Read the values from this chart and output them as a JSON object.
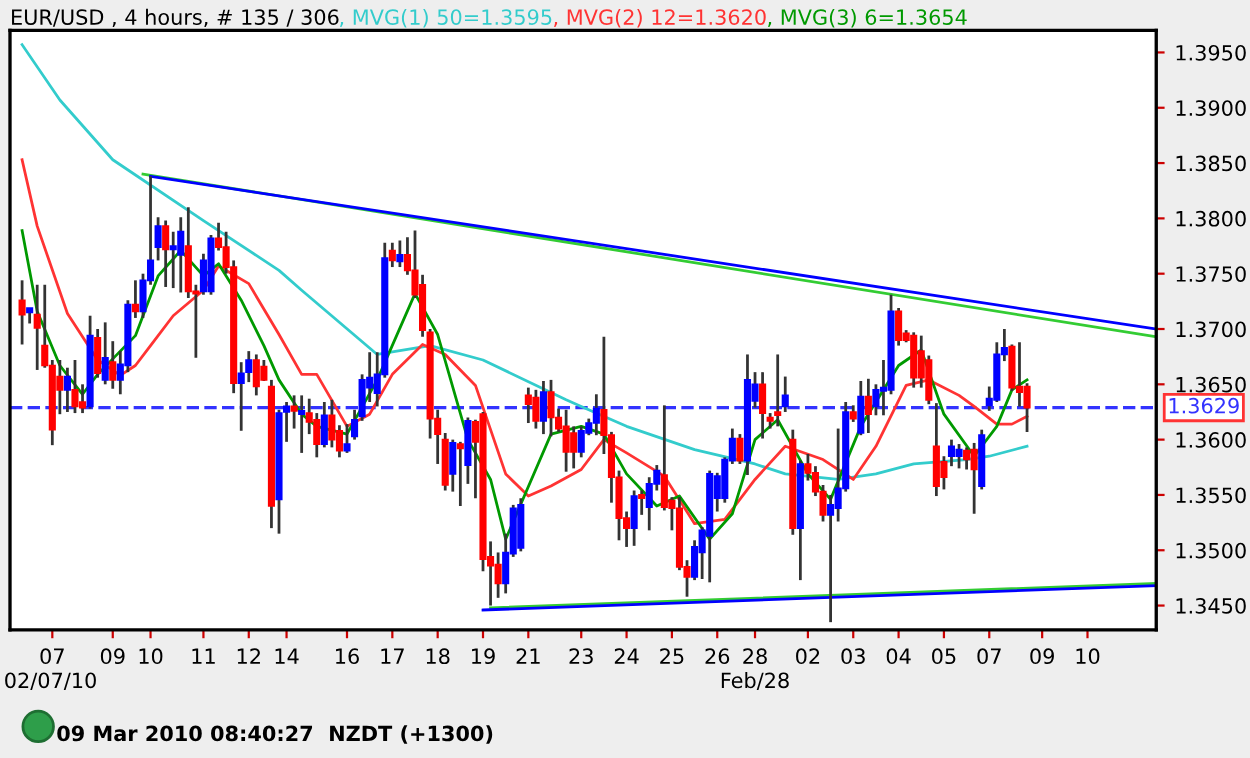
{
  "chart_data": {
    "type": "candlestick",
    "title": "EUR/USD , 4 hours, # 135 / 306",
    "legend": "top",
    "categories": [
      null,
      null,
      null,
      null,
      "07",
      null,
      null,
      null,
      null,
      null,
      null,
      null,
      "09",
      null,
      null,
      null,
      null,
      "10",
      null,
      null,
      null,
      null,
      null,
      null,
      "11",
      null,
      null,
      null,
      null,
      null,
      "12",
      null,
      null,
      null,
      null,
      "14",
      null,
      null,
      null,
      null,
      null,
      null,
      null,
      "16",
      null,
      null,
      null,
      null,
      null,
      "17",
      null,
      null,
      null,
      null,
      null,
      "18",
      null,
      null,
      null,
      null,
      null,
      "19",
      null,
      null,
      null,
      null,
      null,
      "21",
      null,
      null,
      null,
      null,
      null,
      null,
      "23",
      null,
      null,
      null,
      null,
      null,
      "24",
      null,
      null,
      null,
      null,
      null,
      "25",
      null,
      null,
      null,
      null,
      null,
      "26",
      null,
      null,
      null,
      null,
      "28",
      null,
      null,
      null,
      null,
      null,
      null,
      "02",
      null,
      null,
      null,
      null,
      null,
      "03",
      null,
      null,
      null,
      null,
      null,
      "04",
      null,
      null,
      null,
      null,
      null,
      "05",
      null,
      null,
      null,
      null,
      null,
      "07",
      null,
      null,
      null,
      null,
      null,
      null,
      "09",
      null,
      null,
      null,
      null,
      null,
      "10",
      null,
      null,
      null,
      null,
      null,
      null,
      null,
      null,
      null
    ],
    "ylim": [
      1.3428,
      1.397
    ],
    "yticks": [
      {
        "value": 1.345,
        "label": "1.3450"
      },
      {
        "value": 1.35,
        "label": "1.3500"
      },
      {
        "value": 1.355,
        "label": "1.3550"
      },
      {
        "value": 1.36,
        "label": "1.3600"
      },
      {
        "value": 1.365,
        "label": "1.3650"
      },
      {
        "value": 1.37,
        "label": "1.3700"
      },
      {
        "value": 1.375,
        "label": "1.3750"
      },
      {
        "value": 1.38,
        "label": "1.3800"
      },
      {
        "value": 1.385,
        "label": "1.3850"
      },
      {
        "value": 1.39,
        "label": "1.3900"
      },
      {
        "value": 1.395,
        "label": "1.3950"
      }
    ],
    "ref_lines": [
      {
        "axis": "y",
        "value": 1.3629,
        "label": "1.3629",
        "color": "#3333ff",
        "line_style": "dashed"
      }
    ],
    "annotations": [
      "02/07/10",
      "Feb/28",
      "09 Mar 2010 08:40:27  NZDT (+1300)"
    ],
    "series": [
      {
        "colors": [
          "#ff0000",
          "#0000ff",
          "#ff0000",
          "#ff0000",
          "#ff0000",
          "#ff0000",
          "#0000ff",
          "#ff0000",
          "#ff0000",
          "#0000ff",
          "#ff0000",
          "#0000ff",
          "#ff0000",
          "#0000ff",
          "#0000ff",
          "#ff0000",
          "#0000ff",
          "#0000ff",
          "#0000ff",
          "#ff0000",
          "#0000ff",
          "#0000ff",
          "#ff0000",
          "#ff0000",
          "#0000ff",
          "#0000ff",
          "#ff0000",
          "#ff0000",
          "#ff0000",
          "#0000ff",
          "#0000ff",
          "#ff0000",
          "#ff0000",
          "#ff0000",
          "#0000ff",
          "#0000ff",
          "#ff0000",
          "#0000ff",
          "#ff0000",
          "#ff0000",
          "#0000ff",
          "#ff0000",
          "#ff0000",
          "#0000ff",
          "#0000ff",
          "#0000ff",
          "#0000ff",
          "#0000ff",
          "#0000ff",
          "#ff0000",
          "#0000ff",
          "#ff0000",
          "#ff0000",
          "#ff0000",
          "#ff0000",
          "#ff0000",
          "#ff0000",
          "#0000ff",
          "#ff0000",
          "#0000ff",
          "#ff0000",
          "#ff0000",
          "#ff0000",
          "#ff0000",
          "#0000ff",
          "#0000ff",
          "#0000ff",
          "#ff0000",
          "#ff0000",
          "#0000ff",
          "#ff0000",
          "#ff0000",
          "#ff0000",
          "#ff0000",
          "#0000ff",
          "#0000ff",
          "#0000ff",
          "#ff0000",
          "#ff0000",
          "#ff0000",
          "#ff0000",
          "#0000ff",
          "#ff0000",
          "#0000ff",
          "#0000ff",
          "#ff0000",
          "#ff0000",
          "#ff0000",
          "#ff0000",
          "#0000ff",
          "#0000ff",
          "#0000ff",
          "#0000ff",
          "#0000ff",
          "#0000ff",
          "#ff0000",
          "#0000ff",
          "#0000ff",
          "#ff0000",
          "#ff0000",
          "#ff0000",
          "#0000ff",
          "#ff0000",
          "#0000ff",
          "#ff0000",
          "#ff0000",
          "#ff0000",
          "#0000ff",
          "#0000ff",
          "#0000ff",
          "#ff0000",
          "#0000ff",
          "#ff0000",
          "#0000ff",
          "#0000ff",
          "#0000ff",
          "#ff0000",
          "#ff0000",
          "#ff0000",
          "#ff0000",
          "#ff0000",
          "#ff0000",
          "#ff0000",
          "#0000ff",
          "#0000ff",
          "#ff0000",
          "#ff0000",
          "#0000ff",
          "#0000ff",
          "#0000ff",
          "#0000ff",
          "#ff0000",
          "#ff0000",
          "#ff0000",
          null,
          null,
          null,
          null,
          null,
          null,
          null,
          null,
          null,
          null,
          null,
          null,
          null,
          null,
          null,
          null,
          null
        ],
        "ohlc": [
          [
            1.3726,
            1.3744,
            1.3686,
            1.3713
          ],
          [
            1.3715,
            1.3719,
            1.3705,
            1.3719
          ],
          [
            1.3713,
            1.374,
            1.3663,
            1.3701
          ],
          [
            1.3685,
            1.374,
            1.3665,
            1.3667
          ],
          [
            1.3667,
            1.3672,
            1.3595,
            1.3609
          ],
          [
            1.3657,
            1.3672,
            1.3623,
            1.3645
          ],
          [
            1.3645,
            1.3665,
            1.3625,
            1.3657
          ],
          [
            1.3645,
            1.3672,
            1.3624,
            1.363
          ],
          [
            1.3634,
            1.365,
            1.3624,
            1.3629
          ],
          [
            1.363,
            1.3712,
            1.3628,
            1.3694
          ],
          [
            1.3692,
            1.37,
            1.3656,
            1.366
          ],
          [
            1.3654,
            1.3706,
            1.365,
            1.3674
          ],
          [
            1.367,
            1.3689,
            1.3646,
            1.3654
          ],
          [
            1.3654,
            1.368,
            1.3641,
            1.3668
          ],
          [
            1.3667,
            1.3726,
            1.3661,
            1.3722
          ],
          [
            1.3722,
            1.3744,
            1.371,
            1.3716
          ],
          [
            1.3716,
            1.375,
            1.371,
            1.3744
          ],
          [
            1.3744,
            1.3838,
            1.374,
            1.3762
          ],
          [
            1.3774,
            1.3801,
            1.3762,
            1.3793
          ],
          [
            1.3793,
            1.3798,
            1.3738,
            1.3772
          ],
          [
            1.3772,
            1.3788,
            1.3737,
            1.3775
          ],
          [
            1.3767,
            1.3801,
            1.3733,
            1.3788
          ],
          [
            1.3775,
            1.381,
            1.3728,
            1.3734
          ],
          [
            1.3734,
            1.374,
            1.3674,
            1.3732
          ],
          [
            1.3734,
            1.3768,
            1.3731,
            1.3762
          ],
          [
            1.3734,
            1.3785,
            1.3731,
            1.3782
          ],
          [
            1.3782,
            1.3796,
            1.3771,
            1.3774
          ],
          [
            1.3774,
            1.3788,
            1.375,
            1.3756
          ],
          [
            1.3756,
            1.3762,
            1.3642,
            1.3651
          ],
          [
            1.3651,
            1.367,
            1.3608,
            1.366
          ],
          [
            1.3661,
            1.368,
            1.3652,
            1.3672
          ],
          [
            1.3672,
            1.3677,
            1.364,
            1.3648
          ],
          [
            1.3666,
            1.3672,
            1.3653,
            1.3654
          ],
          [
            1.3648,
            1.3654,
            1.352,
            1.354
          ],
          [
            1.3546,
            1.3627,
            1.3515,
            1.3624
          ],
          [
            1.3625,
            1.3634,
            1.3598,
            1.363
          ],
          [
            1.363,
            1.364,
            1.361,
            1.3626
          ],
          [
            1.3623,
            1.364,
            1.3588,
            1.3626
          ],
          [
            1.3624,
            1.3637,
            1.3605,
            1.3616
          ],
          [
            1.3618,
            1.3624,
            1.3584,
            1.3596
          ],
          [
            1.3596,
            1.3634,
            1.3593,
            1.3622
          ],
          [
            1.3622,
            1.3636,
            1.3593,
            1.36
          ],
          [
            1.3608,
            1.3613,
            1.3584,
            1.359
          ],
          [
            1.359,
            1.3614,
            1.3588,
            1.3596
          ],
          [
            1.3603,
            1.3627,
            1.36,
            1.3618
          ],
          [
            1.3621,
            1.3659,
            1.3617,
            1.3654
          ],
          [
            1.3647,
            1.3679,
            1.3634,
            1.3656
          ],
          [
            1.3642,
            1.3679,
            1.363,
            1.3659
          ],
          [
            1.3659,
            1.3778,
            1.3656,
            1.3764
          ],
          [
            1.3771,
            1.3778,
            1.3756,
            1.3762
          ],
          [
            1.3761,
            1.378,
            1.3756,
            1.3767
          ],
          [
            1.3767,
            1.3783,
            1.3749,
            1.3753
          ],
          [
            1.3753,
            1.3789,
            1.3728,
            1.3731
          ],
          [
            1.374,
            1.3749,
            1.3693,
            1.3699
          ],
          [
            1.3697,
            1.37,
            1.3601,
            1.3619
          ],
          [
            1.3619,
            1.3627,
            1.3578,
            1.3605
          ],
          [
            1.36,
            1.3606,
            1.3554,
            1.3559
          ],
          [
            1.3569,
            1.36,
            1.3553,
            1.3597
          ],
          [
            1.3596,
            1.3598,
            1.354,
            1.3592
          ],
          [
            1.3577,
            1.362,
            1.356,
            1.3617
          ],
          [
            1.3616,
            1.3618,
            1.3547,
            1.3598
          ],
          [
            1.3623,
            1.3625,
            1.3481,
            1.3492
          ],
          [
            1.3494,
            1.3508,
            1.345,
            1.3486
          ],
          [
            1.3487,
            1.3498,
            1.3457,
            1.347
          ],
          [
            1.347,
            1.3515,
            1.3461,
            1.3498
          ],
          [
            1.3497,
            1.3541,
            1.3494,
            1.3538
          ],
          [
            1.3502,
            1.3547,
            1.3499,
            1.3541
          ],
          [
            1.364,
            1.3647,
            1.3615,
            1.3632
          ],
          [
            1.3638,
            1.3645,
            1.361,
            1.3617
          ],
          [
            1.3617,
            1.3653,
            1.3605,
            1.3643
          ],
          [
            1.3643,
            1.3654,
            1.3603,
            1.362
          ],
          [
            1.362,
            1.3628,
            1.3607,
            1.361
          ],
          [
            1.3612,
            1.3627,
            1.3571,
            1.3589
          ],
          [
            1.3606,
            1.3612,
            1.3574,
            1.3589
          ],
          [
            1.3589,
            1.3612,
            1.3584,
            1.3608
          ],
          [
            1.3606,
            1.3619,
            1.3604,
            1.3615
          ],
          [
            1.3615,
            1.3641,
            1.3604,
            1.3628
          ],
          [
            1.3627,
            1.3693,
            1.3587,
            1.3604
          ],
          [
            1.3604,
            1.3607,
            1.3543,
            1.3566
          ],
          [
            1.3566,
            1.3572,
            1.3509,
            1.3529
          ],
          [
            1.3529,
            1.3535,
            1.3503,
            1.352
          ],
          [
            1.352,
            1.3554,
            1.3504,
            1.3549
          ],
          [
            1.355,
            1.3554,
            1.3532,
            1.3547
          ],
          [
            1.3539,
            1.3566,
            1.3518,
            1.356
          ],
          [
            1.356,
            1.3577,
            1.3554,
            1.3572
          ],
          [
            1.3568,
            1.3631,
            1.3536,
            1.3539
          ],
          [
            1.3545,
            1.3548,
            1.3518,
            1.3538
          ],
          [
            1.3538,
            1.3548,
            1.3482,
            1.3485
          ],
          [
            1.3485,
            1.3491,
            1.3458,
            1.3476
          ],
          [
            1.3476,
            1.3509,
            1.3473,
            1.3503
          ],
          [
            1.3498,
            1.3521,
            1.3474,
            1.3518
          ],
          [
            1.3513,
            1.3572,
            1.3471,
            1.3569
          ],
          [
            1.3547,
            1.357,
            1.3535,
            1.3567
          ],
          [
            1.3547,
            1.3584,
            1.3543,
            1.3582
          ],
          [
            1.3581,
            1.361,
            1.3578,
            1.3601
          ],
          [
            1.3601,
            1.3605,
            1.3578,
            1.3581
          ],
          [
            1.3581,
            1.3677,
            1.3568,
            1.3654
          ],
          [
            1.3635,
            1.3661,
            1.3629,
            1.365
          ],
          [
            1.365,
            1.3661,
            1.3601,
            1.3624
          ],
          [
            1.362,
            1.3624,
            1.361,
            1.3617
          ],
          [
            1.3625,
            1.3677,
            1.3612,
            1.3622
          ],
          [
            1.363,
            1.3657,
            1.3625,
            1.364
          ],
          [
            1.36,
            1.3609,
            1.3514,
            1.352
          ],
          [
            1.352,
            1.3581,
            1.3473,
            1.3578
          ],
          [
            1.3578,
            1.3587,
            1.3563,
            1.357
          ],
          [
            1.357,
            1.3576,
            1.3549,
            1.3553
          ],
          [
            1.3553,
            1.3559,
            1.3526,
            1.3532
          ],
          [
            1.3532,
            1.355,
            1.3435,
            1.3541
          ],
          [
            1.3538,
            1.361,
            1.3526,
            1.3556
          ],
          [
            1.3556,
            1.3634,
            1.3553,
            1.3625
          ],
          [
            1.3625,
            1.3631,
            1.3616,
            1.3619
          ],
          [
            1.3606,
            1.3653,
            1.3604,
            1.3639
          ],
          [
            1.3639,
            1.3655,
            1.3606,
            1.3623
          ],
          [
            1.363,
            1.365,
            1.3622,
            1.3645
          ],
          [
            1.3644,
            1.3672,
            1.3622,
            1.3647
          ],
          [
            1.3645,
            1.3731,
            1.3641,
            1.3716
          ],
          [
            1.3716,
            1.3719,
            1.3685,
            1.369
          ],
          [
            1.3696,
            1.3699,
            1.3688,
            1.369
          ],
          [
            1.3694,
            1.3697,
            1.3647,
            1.3656
          ],
          [
            1.368,
            1.3694,
            1.3647,
            1.3656
          ],
          [
            1.3672,
            1.3676,
            1.3632,
            1.3636
          ],
          [
            1.3594,
            1.3633,
            1.3549,
            1.3558
          ],
          [
            1.358,
            1.3585,
            1.3555,
            1.3566
          ],
          [
            1.3585,
            1.36,
            1.3576,
            1.3594
          ],
          [
            1.3585,
            1.3596,
            1.3574,
            1.3591
          ],
          [
            1.359,
            1.3593,
            1.3573,
            1.3582
          ],
          [
            1.3591,
            1.3597,
            1.3533,
            1.3573
          ],
          [
            1.3558,
            1.3609,
            1.3555,
            1.3604
          ],
          [
            1.3631,
            1.3648,
            1.3626,
            1.3637
          ],
          [
            1.3636,
            1.3688,
            1.3634,
            1.3677
          ],
          [
            1.3677,
            1.37,
            1.3671,
            1.3683
          ],
          [
            1.3684,
            1.3686,
            1.3644,
            1.3647
          ],
          [
            1.3648,
            1.3688,
            1.363,
            1.3643
          ],
          [
            1.3648,
            1.3651,
            1.3607,
            1.3629
          ],
          null,
          null,
          null,
          null,
          null,
          null,
          null,
          null,
          null,
          null,
          null,
          null,
          null,
          null,
          null,
          null,
          null
        ]
      },
      {
        "type": "line",
        "name": ", MVG(1) 50=1.3595",
        "color": "#33cccc",
        "values": [
          1.3957,
          null,
          null,
          null,
          null,
          1.3907,
          null,
          null,
          null,
          null,
          null,
          null,
          1.3853,
          null,
          null,
          null,
          null,
          null,
          null,
          null,
          null,
          null,
          null,
          null,
          1.3798,
          null,
          null,
          null,
          null,
          null,
          null,
          null,
          null,
          null,
          1.3753,
          null,
          null,
          1.3735,
          null,
          null,
          null,
          null,
          null,
          null,
          null,
          null,
          null,
          1.3677,
          null,
          null,
          null,
          null,
          null,
          null,
          1.3685,
          null,
          null,
          null,
          null,
          null,
          null,
          1.3672,
          null,
          null,
          null,
          null,
          null,
          null,
          null,
          null,
          null,
          null,
          1.3636,
          null,
          1.363,
          null,
          null,
          null,
          null,
          null,
          1.3612,
          null,
          null,
          null,
          null,
          null,
          null,
          null,
          null,
          1.3591,
          null,
          null,
          null,
          null,
          null,
          null,
          null,
          1.3578,
          null,
          null,
          null,
          1.3569,
          null,
          null,
          null,
          null,
          null,
          null,
          1.3564,
          null,
          null,
          null,
          null,
          1.3569,
          null,
          null,
          null,
          null,
          1.3578,
          null,
          null,
          null,
          null,
          null,
          null,
          1.3582,
          null,
          null,
          1.3585,
          null,
          null,
          null,
          null,
          1.3594,
          null,
          null,
          null,
          null,
          null,
          null,
          null,
          null,
          null,
          null,
          null,
          null,
          null,
          null,
          null,
          null,
          null
        ]
      },
      {
        "type": "line",
        "name": ", MVG(2) 12=1.3620",
        "color": "#ff3333",
        "values": [
          1.3853,
          null,
          1.3793,
          null,
          null,
          null,
          1.3714,
          null,
          null,
          null,
          1.3672,
          null,
          null,
          1.3658,
          null,
          1.3667,
          null,
          1.3685,
          null,
          null,
          1.3712,
          null,
          null,
          null,
          1.3735,
          null,
          1.3757,
          null,
          null,
          null,
          1.3741,
          null,
          null,
          null,
          1.3695,
          null,
          null,
          1.3659,
          null,
          1.3659,
          null,
          null,
          null,
          1.3612,
          null,
          null,
          1.3623,
          null,
          null,
          1.3659,
          null,
          null,
          null,
          1.3686,
          null,
          null,
          1.3677,
          null,
          null,
          null,
          1.3649,
          null,
          null,
          null,
          1.3569,
          null,
          null,
          1.3549,
          null,
          null,
          1.3558,
          null,
          null,
          null,
          1.3573,
          null,
          null,
          1.36,
          null,
          null,
          1.3588,
          null,
          null,
          null,
          null,
          1.3567,
          null,
          null,
          null,
          1.3524,
          null,
          null,
          null,
          1.3528,
          null,
          null,
          null,
          1.3564,
          null,
          null,
          null,
          1.3594,
          null,
          null,
          null,
          null,
          1.3582,
          null,
          null,
          null,
          1.3564,
          null,
          null,
          1.3594,
          null,
          null,
          null,
          1.3649,
          null,
          null,
          1.3654,
          null,
          null,
          null,
          1.364,
          null,
          1.363,
          null,
          null,
          1.3614,
          null,
          1.3614,
          null,
          1.3621,
          null,
          null,
          null,
          null,
          null,
          null,
          null,
          null,
          null,
          null,
          null,
          null,
          null,
          null,
          null,
          null,
          null
        ]
      },
      {
        "type": "line",
        "name": ", MVG(3) 6=1.3654",
        "color": "#009900",
        "values": [
          1.3789,
          null,
          1.3716,
          null,
          null,
          1.3667,
          null,
          null,
          1.3641,
          null,
          1.3659,
          null,
          null,
          null,
          null,
          1.3694,
          null,
          null,
          1.3748,
          null,
          null,
          1.3771,
          null,
          null,
          1.3748,
          null,
          1.3759,
          null,
          null,
          1.3726,
          null,
          null,
          1.3685,
          null,
          1.3654,
          null,
          null,
          1.3623,
          null,
          1.3612,
          null,
          null,
          null,
          1.3605,
          null,
          null,
          null,
          1.3654,
          null,
          null,
          null,
          null,
          1.3732,
          null,
          null,
          1.3695,
          null,
          null,
          null,
          1.36,
          null,
          null,
          1.3564,
          null,
          1.351,
          null,
          null,
          null,
          null,
          null,
          1.3605,
          null,
          null,
          null,
          1.3612,
          null,
          null,
          1.3605,
          null,
          null,
          1.3569,
          null,
          null,
          null,
          1.354,
          null,
          null,
          1.3549,
          null,
          null,
          null,
          1.351,
          null,
          null,
          1.3533,
          null,
          null,
          1.36,
          null,
          null,
          1.3618,
          null,
          null,
          null,
          1.3569,
          null,
          null,
          1.3546,
          null,
          null,
          null,
          1.3612,
          null,
          null,
          null,
          null,
          1.3667,
          null,
          null,
          1.3681,
          null,
          null,
          1.3623,
          null,
          null,
          null,
          1.3585,
          null,
          null,
          1.3612,
          null,
          1.3645,
          null,
          1.3654,
          null,
          null,
          null,
          null,
          null,
          null,
          null,
          null,
          null,
          null,
          null,
          null,
          null,
          null,
          null,
          null,
          null
        ]
      },
      {
        "type": "line",
        "color": "#33cc33",
        "values": [
          null,
          null,
          null,
          null,
          null,
          null,
          null,
          null,
          null,
          null,
          null,
          null,
          null,
          null,
          null,
          null,
          1.384,
          null,
          null,
          null,
          null,
          null,
          null,
          null,
          null,
          null,
          null,
          null,
          null,
          null,
          null,
          null,
          null,
          null,
          null,
          null,
          null,
          null,
          null,
          null,
          null,
          null,
          null,
          null,
          null,
          null,
          null,
          null,
          null,
          null,
          null,
          null,
          null,
          null,
          null,
          null,
          null,
          null,
          null,
          null,
          null,
          null,
          null,
          null,
          null,
          null,
          null,
          null,
          null,
          null,
          null,
          null,
          null,
          null,
          null,
          null,
          null,
          null,
          null,
          null,
          null,
          null,
          null,
          null,
          null,
          null,
          null,
          null,
          null,
          null,
          null,
          null,
          null,
          null,
          null,
          null,
          null,
          null,
          null,
          null,
          null,
          null,
          null,
          null,
          null,
          null,
          null,
          null,
          null,
          null,
          null,
          null,
          null,
          null,
          null,
          null,
          null,
          null,
          null,
          null,
          null,
          null,
          null,
          null,
          null,
          null,
          null,
          null,
          null,
          null,
          null,
          null,
          null,
          null,
          null,
          null,
          null,
          null,
          null,
          null,
          null,
          null,
          null,
          null,
          null,
          null,
          null,
          null,
          null,
          null,
          1.3693
        ]
      },
      {
        "type": "line",
        "color": "#0000ff",
        "values": [
          null,
          null,
          null,
          null,
          null,
          null,
          null,
          null,
          null,
          null,
          null,
          null,
          null,
          null,
          null,
          null,
          null,
          1.3838,
          null,
          null,
          null,
          null,
          null,
          null,
          null,
          null,
          null,
          null,
          null,
          null,
          null,
          null,
          null,
          null,
          null,
          null,
          null,
          null,
          null,
          null,
          null,
          null,
          null,
          null,
          null,
          null,
          null,
          null,
          null,
          null,
          null,
          null,
          null,
          null,
          null,
          null,
          null,
          null,
          null,
          null,
          null,
          null,
          null,
          null,
          null,
          null,
          null,
          null,
          null,
          null,
          null,
          null,
          null,
          null,
          null,
          null,
          null,
          null,
          null,
          null,
          null,
          null,
          null,
          null,
          null,
          null,
          null,
          null,
          null,
          null,
          null,
          null,
          null,
          null,
          null,
          null,
          null,
          null,
          null,
          null,
          null,
          null,
          null,
          null,
          null,
          null,
          null,
          null,
          null,
          null,
          null,
          null,
          null,
          null,
          null,
          null,
          null,
          null,
          null,
          null,
          null,
          null,
          null,
          null,
          null,
          null,
          null,
          null,
          null,
          null,
          null,
          null,
          null,
          null,
          null,
          null,
          null,
          null,
          null,
          null,
          null,
          null,
          null,
          null,
          null,
          null,
          null,
          null,
          null,
          null,
          1.37
        ]
      },
      {
        "type": "line",
        "color": "#33cc33",
        "values": [
          null,
          null,
          null,
          null,
          null,
          null,
          null,
          null,
          null,
          null,
          null,
          null,
          null,
          null,
          null,
          null,
          null,
          null,
          null,
          null,
          null,
          null,
          null,
          null,
          null,
          null,
          null,
          null,
          null,
          null,
          null,
          null,
          null,
          null,
          null,
          null,
          null,
          null,
          null,
          null,
          null,
          null,
          null,
          null,
          null,
          null,
          null,
          null,
          null,
          null,
          null,
          null,
          null,
          null,
          null,
          null,
          null,
          null,
          null,
          null,
          null,
          null,
          1.3448,
          null,
          null,
          null,
          null,
          null,
          null,
          null,
          null,
          null,
          null,
          null,
          null,
          null,
          null,
          null,
          null,
          null,
          null,
          null,
          null,
          null,
          null,
          null,
          null,
          null,
          null,
          null,
          null,
          null,
          null,
          null,
          null,
          null,
          null,
          null,
          null,
          null,
          null,
          null,
          null,
          null,
          null,
          null,
          null,
          null,
          null,
          null,
          null,
          null,
          null,
          null,
          null,
          null,
          null,
          null,
          null,
          null,
          null,
          null,
          null,
          null,
          null,
          null,
          null,
          null,
          null,
          null,
          null,
          null,
          null,
          null,
          null,
          null,
          null,
          null,
          null,
          null,
          null,
          null,
          null,
          null,
          null,
          null,
          null,
          null,
          null,
          null,
          1.347
        ]
      },
      {
        "type": "line",
        "color": "#0000ff",
        "values": [
          null,
          null,
          null,
          null,
          null,
          null,
          null,
          null,
          null,
          null,
          null,
          null,
          null,
          null,
          null,
          null,
          null,
          null,
          null,
          null,
          null,
          null,
          null,
          null,
          null,
          null,
          null,
          null,
          null,
          null,
          null,
          null,
          null,
          null,
          null,
          null,
          null,
          null,
          null,
          null,
          null,
          null,
          null,
          null,
          null,
          null,
          null,
          null,
          null,
          null,
          null,
          null,
          null,
          null,
          null,
          null,
          null,
          null,
          null,
          null,
          null,
          1.3446,
          null,
          null,
          null,
          null,
          null,
          null,
          null,
          null,
          null,
          null,
          null,
          null,
          null,
          null,
          null,
          null,
          null,
          null,
          null,
          null,
          null,
          null,
          null,
          null,
          null,
          null,
          null,
          null,
          null,
          null,
          null,
          null,
          null,
          null,
          null,
          null,
          null,
          null,
          null,
          null,
          null,
          null,
          null,
          null,
          null,
          null,
          null,
          null,
          null,
          null,
          null,
          null,
          null,
          null,
          null,
          null,
          null,
          null,
          null,
          null,
          null,
          null,
          null,
          null,
          null,
          null,
          null,
          null,
          null,
          null,
          null,
          null,
          null,
          null,
          null,
          null,
          null,
          null,
          null,
          null,
          null,
          null,
          null,
          null,
          null,
          null,
          null,
          null,
          1.3468
        ]
      }
    ]
  }
}
